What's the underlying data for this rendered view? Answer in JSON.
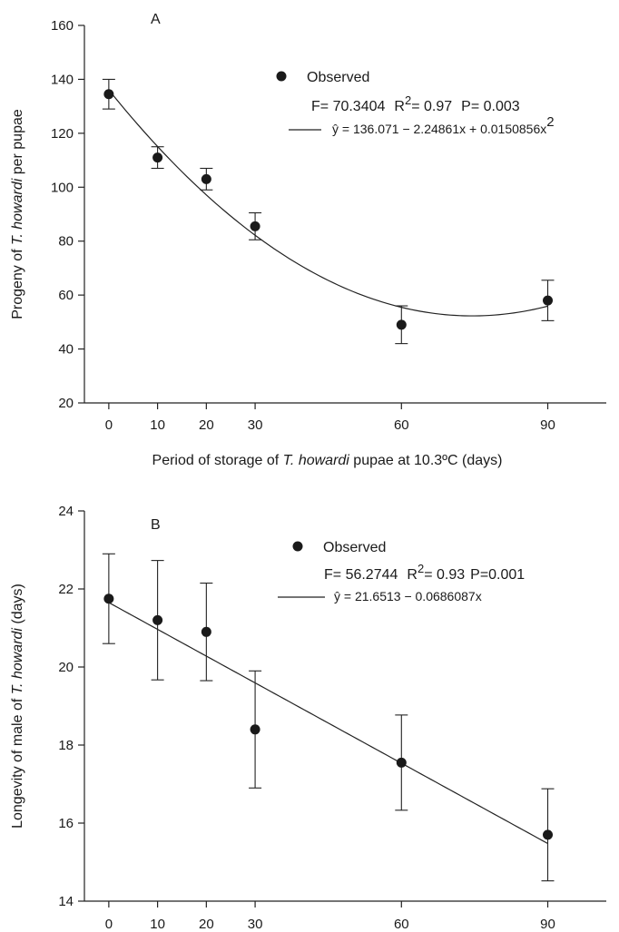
{
  "chart_data": [
    {
      "type": "scatter",
      "panel_label": "A",
      "title": "",
      "xlabel": {
        "before": "Period of storage of ",
        "italic": "T. howardi",
        "after": " pupae at 10.3ºC (days)"
      },
      "ylabel": {
        "before": "Progeny of ",
        "italic": "T. howardi",
        "after": " per pupae"
      },
      "xlim": [
        -5,
        102
      ],
      "ylim": [
        20,
        160
      ],
      "xticks": [
        0,
        10,
        20,
        30,
        60,
        90
      ],
      "yticks": [
        20,
        40,
        60,
        80,
        100,
        120,
        140,
        160
      ],
      "x": [
        0,
        10,
        20,
        30,
        60,
        90
      ],
      "y": [
        134.5,
        111,
        103,
        85.5,
        49,
        58
      ],
      "error": [
        5.5,
        4,
        4,
        5,
        7,
        7.5
      ],
      "fit": {
        "type": "quadratic",
        "coefficients": [
          136.071,
          -2.24861,
          0.0150856
        ]
      },
      "legend": {
        "marker_label": "Observed",
        "stats": {
          "F": "F= 70.3404",
          "R": "R",
          "R_sup": "2",
          "R_val": "= 0.97",
          "P": "P= 0.003"
        },
        "equation": {
          "lhs": "ŷ",
          "rhs": " = 136.071 − 2.24861x + 0.0150856x",
          "sup": "2"
        }
      }
    },
    {
      "type": "scatter",
      "panel_label": "B",
      "title": "",
      "xlabel": "",
      "ylabel": {
        "before": "Longevity of male of ",
        "italic": "T. howardi",
        "after": " (days)"
      },
      "xlim": [
        -5,
        102
      ],
      "ylim": [
        14,
        24
      ],
      "xticks": [
        0,
        10,
        20,
        30,
        60,
        90
      ],
      "yticks": [
        14,
        16,
        18,
        20,
        22,
        24
      ],
      "x": [
        0,
        10,
        20,
        30,
        60,
        90
      ],
      "y": [
        21.75,
        21.2,
        20.9,
        18.4,
        17.55,
        15.7
      ],
      "error": [
        1.15,
        1.53,
        1.25,
        1.5,
        1.22,
        1.18
      ],
      "fit": {
        "type": "linear",
        "coefficients": [
          21.6513,
          -0.0686087
        ]
      },
      "legend": {
        "marker_label": "Observed",
        "stats": {
          "F": "F= 56.2744",
          "R": "R",
          "R_sup": "2",
          "R_val": "= 0.93",
          "P": "P=0.001"
        },
        "equation": {
          "lhs": "ŷ",
          "rhs": " = 21.6513 − 0.0686087x",
          "sup": ""
        }
      }
    }
  ]
}
